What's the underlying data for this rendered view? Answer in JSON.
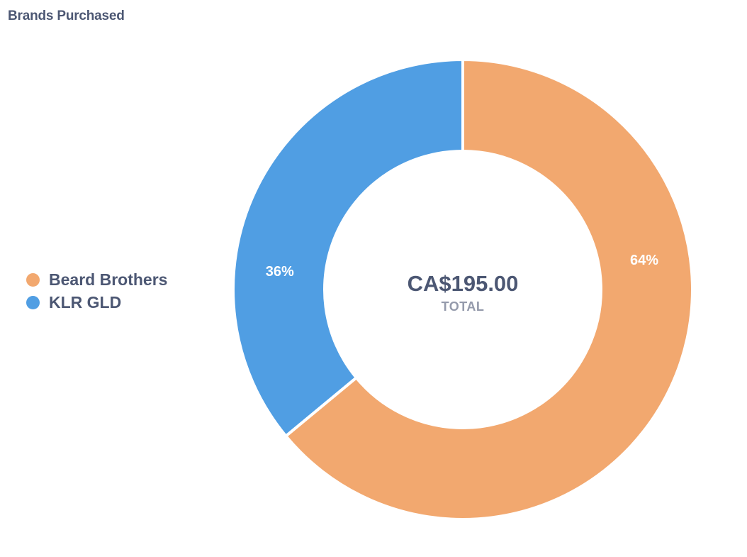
{
  "card": {
    "title": "Brands Purchased"
  },
  "chart_data": {
    "type": "pie",
    "variant": "donut",
    "title": "Brands Purchased",
    "categories": [
      "Beard Brothers",
      "KLR GLD"
    ],
    "values": [
      64,
      36
    ],
    "value_unit": "percent",
    "labels": [
      "64%",
      "36%"
    ],
    "colors": [
      "#f2a86f",
      "#509ee3"
    ],
    "legend_position": "left",
    "center": {
      "value": "CA$195.00",
      "label": "TOTAL"
    }
  }
}
